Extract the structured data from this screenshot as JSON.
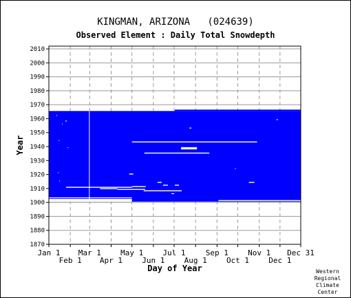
{
  "page": {
    "title": "KINGMAN, ARIZONA   (024639)",
    "subtitle": "Observed Element : Daily Total Snowdepth",
    "credit": [
      "Western",
      "Regional",
      "Climate",
      "Center"
    ]
  },
  "colors": {
    "data": "#0000ff",
    "frame": "#000000",
    "grid": "#999999",
    "gap": "#ffffff"
  },
  "chart_data": {
    "type": "heatmap",
    "title": "Observed Element : Daily Total Snowdepth",
    "xlabel": "Day of Year",
    "ylabel": "Year",
    "xlim": [
      1,
      365
    ],
    "ylim": [
      1870,
      2012
    ],
    "grid": true,
    "x_ticks_upper": [
      {
        "label": "Jan 1",
        "day": 1
      },
      {
        "label": "Mar 1",
        "day": 60
      },
      {
        "label": "May 1",
        "day": 121
      },
      {
        "label": "Jul 1",
        "day": 182
      },
      {
        "label": "Sep 1",
        "day": 244
      },
      {
        "label": "Nov 1",
        "day": 305
      },
      {
        "label": "Dec 31",
        "day": 365
      }
    ],
    "x_ticks_lower": [
      {
        "label": "Feb 1",
        "day": 32
      },
      {
        "label": "Apr 1",
        "day": 91
      },
      {
        "label": "Jun 1",
        "day": 152
      },
      {
        "label": "Aug 1",
        "day": 213
      },
      {
        "label": "Oct 1",
        "day": 274
      },
      {
        "label": "Dec 1",
        "day": 335
      }
    ],
    "y_ticks": [
      1870,
      1880,
      1890,
      1900,
      1910,
      1920,
      1930,
      1940,
      1950,
      1960,
      1970,
      1980,
      1990,
      2000,
      2010
    ],
    "data_blocks": [
      {
        "day_start": 1,
        "day_end": 365,
        "year_start": 1900.5,
        "year_end": 1965.5
      },
      {
        "day_start": 183,
        "day_end": 365,
        "year_start": 1965.5,
        "year_end": 1966.5
      }
    ],
    "missing": [
      {
        "day_start": 1,
        "day_end": 121,
        "year_start": 1900.5,
        "year_end": 1902.5
      },
      {
        "day_start": 1,
        "day_end": 121,
        "year_start": 1903,
        "year_end": 1903.6
      },
      {
        "day_start": 246,
        "day_end": 365,
        "year_start": 1901,
        "year_end": 1901.7
      },
      {
        "day_start": 26,
        "day_end": 121,
        "year_start": 1910.5,
        "year_end": 1911.2
      },
      {
        "day_start": 75,
        "day_end": 100,
        "year_start": 1909.5,
        "year_end": 1910.2
      },
      {
        "day_start": 100,
        "day_end": 140,
        "year_start": 1909,
        "year_end": 1909.7
      },
      {
        "day_start": 121,
        "day_end": 141,
        "year_start": 1911,
        "year_end": 1911.7
      },
      {
        "day_start": 138,
        "day_end": 193,
        "year_start": 1908,
        "year_end": 1908.7
      },
      {
        "day_start": 121,
        "day_end": 302,
        "year_start": 1943,
        "year_end": 1943.7
      },
      {
        "day_start": 139,
        "day_end": 233,
        "year_start": 1935,
        "year_end": 1935.7
      },
      {
        "day_start": 192,
        "day_end": 215,
        "year_start": 1938,
        "year_end": 1939.6
      },
      {
        "day_start": 117,
        "day_end": 123,
        "year_start": 1920,
        "year_end": 1920.7
      },
      {
        "day_start": 158,
        "day_end": 164,
        "year_start": 1914,
        "year_end": 1914.7
      },
      {
        "day_start": 166,
        "day_end": 173,
        "year_start": 1912,
        "year_end": 1912.7
      },
      {
        "day_start": 183,
        "day_end": 189,
        "year_start": 1912,
        "year_end": 1912.7
      },
      {
        "day_start": 178,
        "day_end": 182,
        "year_start": 1906,
        "year_end": 1906.6
      },
      {
        "day_start": 204,
        "day_end": 207,
        "year_start": 1953,
        "year_end": 1953.6
      },
      {
        "day_start": 290,
        "day_end": 298,
        "year_start": 1914,
        "year_end": 1914.7
      },
      {
        "day_start": 59,
        "day_end": 60,
        "year_start": 1900.5,
        "year_end": 1965.5
      },
      {
        "day_start": 15,
        "day_end": 16,
        "year_start": 1944,
        "year_end": 1944.6
      },
      {
        "day_start": 20,
        "day_end": 21,
        "year_start": 1956,
        "year_end": 1956.6
      },
      {
        "day_start": 25,
        "day_end": 27,
        "year_start": 1958,
        "year_end": 1958.6
      },
      {
        "day_start": 16,
        "day_end": 17,
        "year_start": 1915,
        "year_end": 1915.6
      },
      {
        "day_start": 14,
        "day_end": 15,
        "year_start": 1921,
        "year_end": 1921.6
      },
      {
        "day_start": 12,
        "day_end": 13,
        "year_start": 1962,
        "year_end": 1962.6
      },
      {
        "day_start": 28,
        "day_end": 29,
        "year_start": 1939,
        "year_end": 1939.6
      },
      {
        "day_start": 330,
        "day_end": 332,
        "year_start": 1959,
        "year_end": 1959.6
      },
      {
        "day_start": 270,
        "day_end": 271,
        "year_start": 1924,
        "year_end": 1924.6
      }
    ]
  }
}
